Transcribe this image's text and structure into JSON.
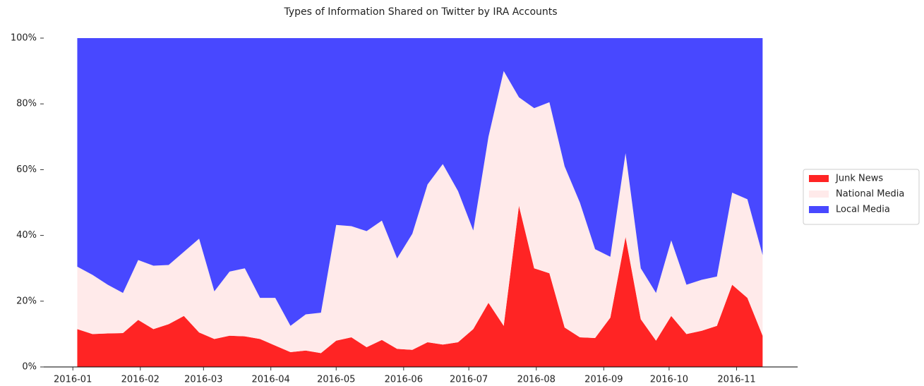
{
  "chart_data": {
    "type": "stacked_area",
    "title": "Types of Information Shared on Twitter by IRA Accounts",
    "x": [
      0,
      1,
      2,
      3,
      4,
      5,
      6,
      7,
      8,
      9,
      10,
      11,
      12,
      13,
      14,
      15,
      16,
      17,
      18,
      19,
      20,
      21,
      22,
      23,
      24,
      25,
      26,
      27,
      28,
      29,
      30,
      31,
      32,
      33,
      34,
      35,
      36,
      37,
      38,
      39,
      40,
      41,
      42,
      43,
      44,
      45
    ],
    "xlim": [
      -2.2,
      47.3
    ],
    "xticks": [
      {
        "value": -0.29,
        "label": "2016-01"
      },
      {
        "value": 4.14,
        "label": "2016-02"
      },
      {
        "value": 8.29,
        "label": "2016-03"
      },
      {
        "value": 12.71,
        "label": "2016-04"
      },
      {
        "value": 17.0,
        "label": "2016-05"
      },
      {
        "value": 21.43,
        "label": "2016-06"
      },
      {
        "value": 25.71,
        "label": "2016-07"
      },
      {
        "value": 30.14,
        "label": "2016-08"
      },
      {
        "value": 34.57,
        "label": "2016-09"
      },
      {
        "value": 38.86,
        "label": "2016-10"
      },
      {
        "value": 43.29,
        "label": "2016-11"
      }
    ],
    "ylim": [
      0,
      100
    ],
    "yticks": [
      {
        "value": 0,
        "label": "0%"
      },
      {
        "value": 20,
        "label": "20%"
      },
      {
        "value": 40,
        "label": "40%"
      },
      {
        "value": 60,
        "label": "60%"
      },
      {
        "value": 80,
        "label": "80%"
      },
      {
        "value": 100,
        "label": "100%"
      }
    ],
    "legend": "right",
    "series": [
      {
        "name": "Junk News",
        "color": "#ff2424",
        "values": [
          11.5,
          10,
          10.2,
          10.3,
          14.3,
          11.5,
          13,
          15.5,
          10.5,
          8.5,
          9.5,
          9.3,
          8.5,
          6.5,
          4.5,
          5,
          4.2,
          8,
          9,
          6,
          8.2,
          5.5,
          5.2,
          7.5,
          6.8,
          7.5,
          11.5,
          19.5,
          12.5,
          49,
          30,
          28.5,
          12,
          9,
          8.8,
          15,
          39.5,
          14.5,
          8,
          15.5,
          10,
          11,
          12.5,
          25,
          21,
          9.5
        ]
      },
      {
        "name": "National Media",
        "color": "#ffeaea",
        "values": [
          19,
          18,
          14.8,
          12.2,
          18.2,
          19.3,
          18,
          19.5,
          28.5,
          14.5,
          19.5,
          20.7,
          12.5,
          14.5,
          8,
          11,
          12.3,
          35.2,
          33.8,
          35.3,
          36.3,
          27.5,
          35.3,
          48,
          54.9,
          46,
          30,
          50.5,
          77.5,
          33,
          48.7,
          52,
          49,
          41,
          27,
          18.5,
          25.5,
          15.5,
          14.5,
          23,
          15,
          15.5,
          15,
          28,
          30,
          24.5
        ]
      },
      {
        "name": "Local Media",
        "color": "#4848ff",
        "values": [
          69.5,
          72,
          75,
          77.5,
          67.5,
          69.2,
          69,
          65,
          61,
          77,
          71,
          70,
          79,
          79,
          87.5,
          84,
          83.5,
          56.8,
          57.2,
          58.7,
          55.5,
          67,
          59.5,
          44.5,
          38.3,
          46.5,
          58.5,
          30,
          10,
          18,
          21.3,
          19.5,
          39,
          50,
          64.2,
          66.5,
          35,
          70,
          77.5,
          61.5,
          75,
          73.5,
          72.5,
          47,
          49,
          66
        ]
      }
    ]
  }
}
